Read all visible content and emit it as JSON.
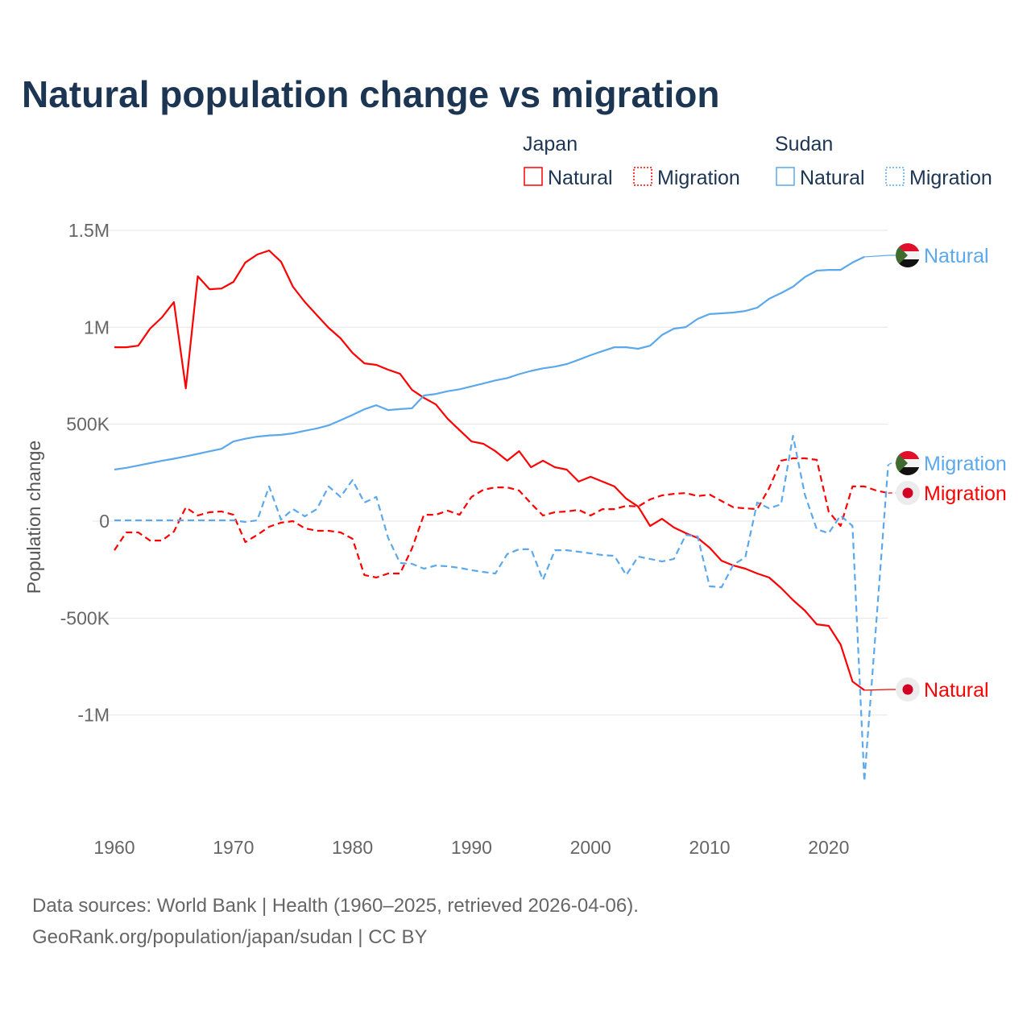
{
  "chart_data": {
    "type": "line",
    "title": "Natural population change vs migration",
    "xlabel": "",
    "ylabel": "Population change",
    "xlim": [
      1960,
      2025
    ],
    "ylim": [
      -1400000,
      1500000
    ],
    "x_ticks": [
      1960,
      1970,
      1980,
      1990,
      2000,
      2010,
      2020
    ],
    "x_tick_labels": [
      "1960",
      "1970",
      "1980",
      "1990",
      "2000",
      "2010",
      "2020"
    ],
    "y_ticks": [
      1500000,
      1000000,
      500000,
      0,
      -500000,
      -1000000
    ],
    "y_tick_labels": [
      "1.5M",
      "1M",
      "500K",
      "0",
      "-500K",
      "-1M"
    ],
    "grid": true,
    "legend": {
      "placement": "top-right",
      "groups": [
        {
          "country": "Japan",
          "items": [
            "Natural",
            "Migration"
          ]
        },
        {
          "country": "Sudan",
          "items": [
            "Natural",
            "Migration"
          ]
        }
      ]
    },
    "start_year": 1960,
    "series": [
      {
        "name": "Japan Natural",
        "country": "Japan",
        "kind": "Natural",
        "end_label": "Natural",
        "color": "#ff0000",
        "dashed": false,
        "values": [
          897000,
          897000,
          905000,
          993000,
          1051000,
          1130000,
          685000,
          1263000,
          1196000,
          1200000,
          1234000,
          1334000,
          1375000,
          1396000,
          1338000,
          1209000,
          1130000,
          1063000,
          997000,
          943000,
          868000,
          814000,
          806000,
          781000,
          760000,
          677000,
          636000,
          602000,
          528000,
          469000,
          411000,
          399000,
          361000,
          312000,
          361000,
          278000,
          312000,
          278000,
          266000,
          204000,
          229000,
          204000,
          179000,
          116000,
          75000,
          -25000,
          12000,
          -33000,
          -62000,
          -87000,
          -137000,
          -204000,
          -229000,
          -245000,
          -270000,
          -291000,
          -345000,
          -407000,
          -461000,
          -532000,
          -540000,
          -636000,
          -827000,
          -872000
        ]
      },
      {
        "name": "Japan Migration",
        "country": "Japan",
        "kind": "Migration",
        "end_label": "Migration",
        "color": "#ff0000",
        "dashed": true,
        "values": [
          -150000,
          -58000,
          -58000,
          -100000,
          -100000,
          -54000,
          71000,
          29000,
          46000,
          50000,
          33000,
          -108000,
          -71000,
          -29000,
          -8000,
          0,
          -37000,
          -50000,
          -50000,
          -58000,
          -91000,
          -278000,
          -291000,
          -270000,
          -270000,
          -141000,
          33000,
          33000,
          54000,
          33000,
          125000,
          162000,
          174000,
          174000,
          158000,
          91000,
          29000,
          46000,
          50000,
          58000,
          29000,
          62000,
          62000,
          79000,
          75000,
          112000,
          133000,
          141000,
          145000,
          129000,
          137000,
          104000,
          71000,
          66000,
          62000,
          170000,
          312000,
          324000,
          324000,
          316000,
          50000,
          -25000,
          179000,
          179000,
          158000,
          145000
        ]
      },
      {
        "name": "Sudan Natural",
        "country": "Sudan",
        "kind": "Natural",
        "end_label": "Natural",
        "color": "#5ca8ec",
        "dashed": false,
        "values": [
          266000,
          275000,
          287000,
          299000,
          311000,
          322000,
          334000,
          347000,
          360000,
          373000,
          411000,
          425000,
          436000,
          442000,
          445000,
          453000,
          466000,
          478000,
          494000,
          520000,
          548000,
          577000,
          598000,
          573000,
          578000,
          582000,
          648000,
          656000,
          670000,
          680000,
          695000,
          710000,
          726000,
          738000,
          758000,
          775000,
          788000,
          797000,
          810000,
          832000,
          856000,
          877000,
          897000,
          897000,
          889000,
          905000,
          960000,
          993000,
          1001000,
          1043000,
          1068000,
          1072000,
          1076000,
          1084000,
          1101000,
          1147000,
          1176000,
          1209000,
          1259000,
          1292000,
          1296000,
          1296000,
          1334000,
          1363000
        ]
      },
      {
        "name": "Sudan Migration",
        "country": "Sudan",
        "kind": "Migration",
        "end_label": "Migration",
        "color": "#5ca8ec",
        "dashed": true,
        "values": [
          4000,
          4000,
          4000,
          4000,
          4000,
          4000,
          4000,
          4000,
          4000,
          4000,
          4000,
          -4000,
          4000,
          179000,
          8000,
          62000,
          25000,
          62000,
          179000,
          125000,
          212000,
          96000,
          125000,
          -87000,
          -216000,
          -220000,
          -245000,
          -229000,
          -233000,
          -241000,
          -253000,
          -262000,
          -270000,
          -170000,
          -145000,
          -145000,
          -303000,
          -150000,
          -150000,
          -158000,
          -166000,
          -175000,
          -179000,
          -278000,
          -183000,
          -195000,
          -208000,
          -195000,
          -71000,
          -79000,
          -336000,
          -341000,
          -224000,
          -187000,
          96000,
          66000,
          87000,
          440000,
          137000,
          -42000,
          -62000,
          29000,
          -25000,
          -1342000,
          -525000,
          291000
        ]
      }
    ]
  },
  "source": {
    "line1": "Data sources: World Bank | Health (1960–2025, retrieved 2026-04-06).",
    "line2": "GeoRank.org/population/japan/sudan | CC BY"
  }
}
